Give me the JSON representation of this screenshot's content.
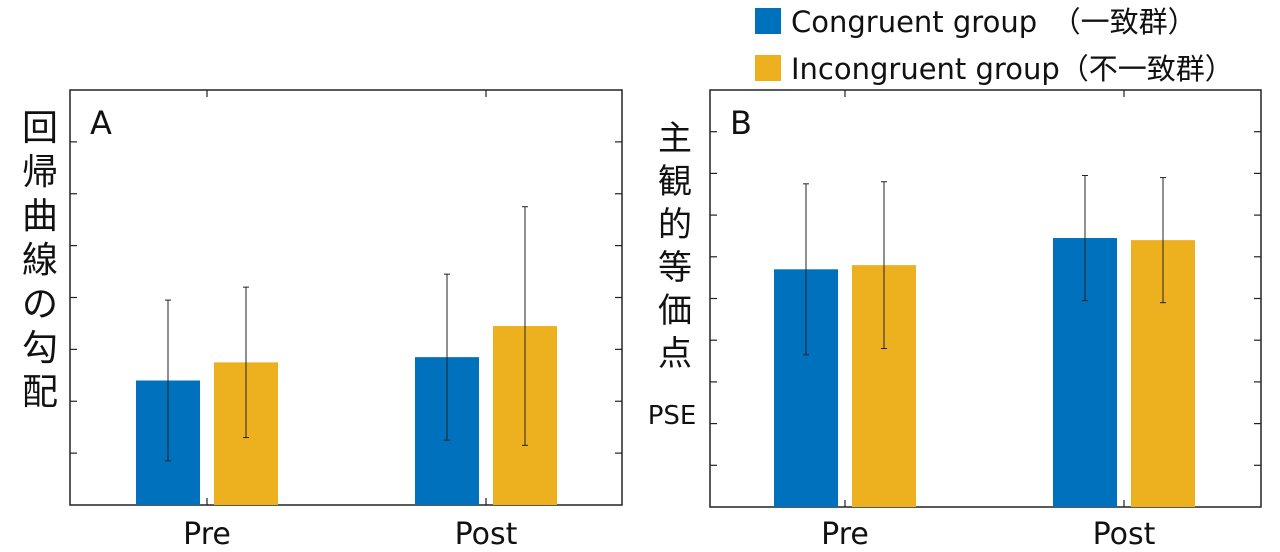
{
  "legend": {
    "items": [
      {
        "label": "Congruent group　（一致群）",
        "color": "#0072BD"
      },
      {
        "label": "Incongruent group（不一致群）",
        "color": "#EDB120"
      }
    ]
  },
  "chart_data": [
    {
      "type": "bar",
      "panel_label": "A",
      "ylabel": "回帰曲線の勾配",
      "xlabel": "",
      "categories": [
        "Pre",
        "Post"
      ],
      "ylim": [
        0,
        8
      ],
      "y_tick_count": 9,
      "y_tick_labels_shown": false,
      "series": [
        {
          "name": "Congruent group　（一致群）",
          "values": [
            2.4,
            2.85
          ],
          "error": [
            1.55,
            1.6
          ]
        },
        {
          "name": "Incongruent group（不一致群）",
          "values": [
            2.75,
            3.45
          ],
          "error": [
            1.45,
            2.3
          ]
        }
      ]
    },
    {
      "type": "bar",
      "panel_label": "B",
      "ylabel": "主観的等価点",
      "ylabel_sub": "PSE",
      "xlabel": "",
      "categories": [
        "Pre",
        "Post"
      ],
      "ylim": [
        0,
        10
      ],
      "y_tick_count": 11,
      "y_tick_labels_shown": false,
      "series": [
        {
          "name": "Congruent group　（一致群）",
          "values": [
            5.7,
            6.45
          ],
          "error": [
            2.05,
            1.5
          ]
        },
        {
          "name": "Incongruent group（不一致群）",
          "values": [
            5.8,
            6.4
          ],
          "error": [
            2.0,
            1.5
          ]
        }
      ]
    }
  ]
}
